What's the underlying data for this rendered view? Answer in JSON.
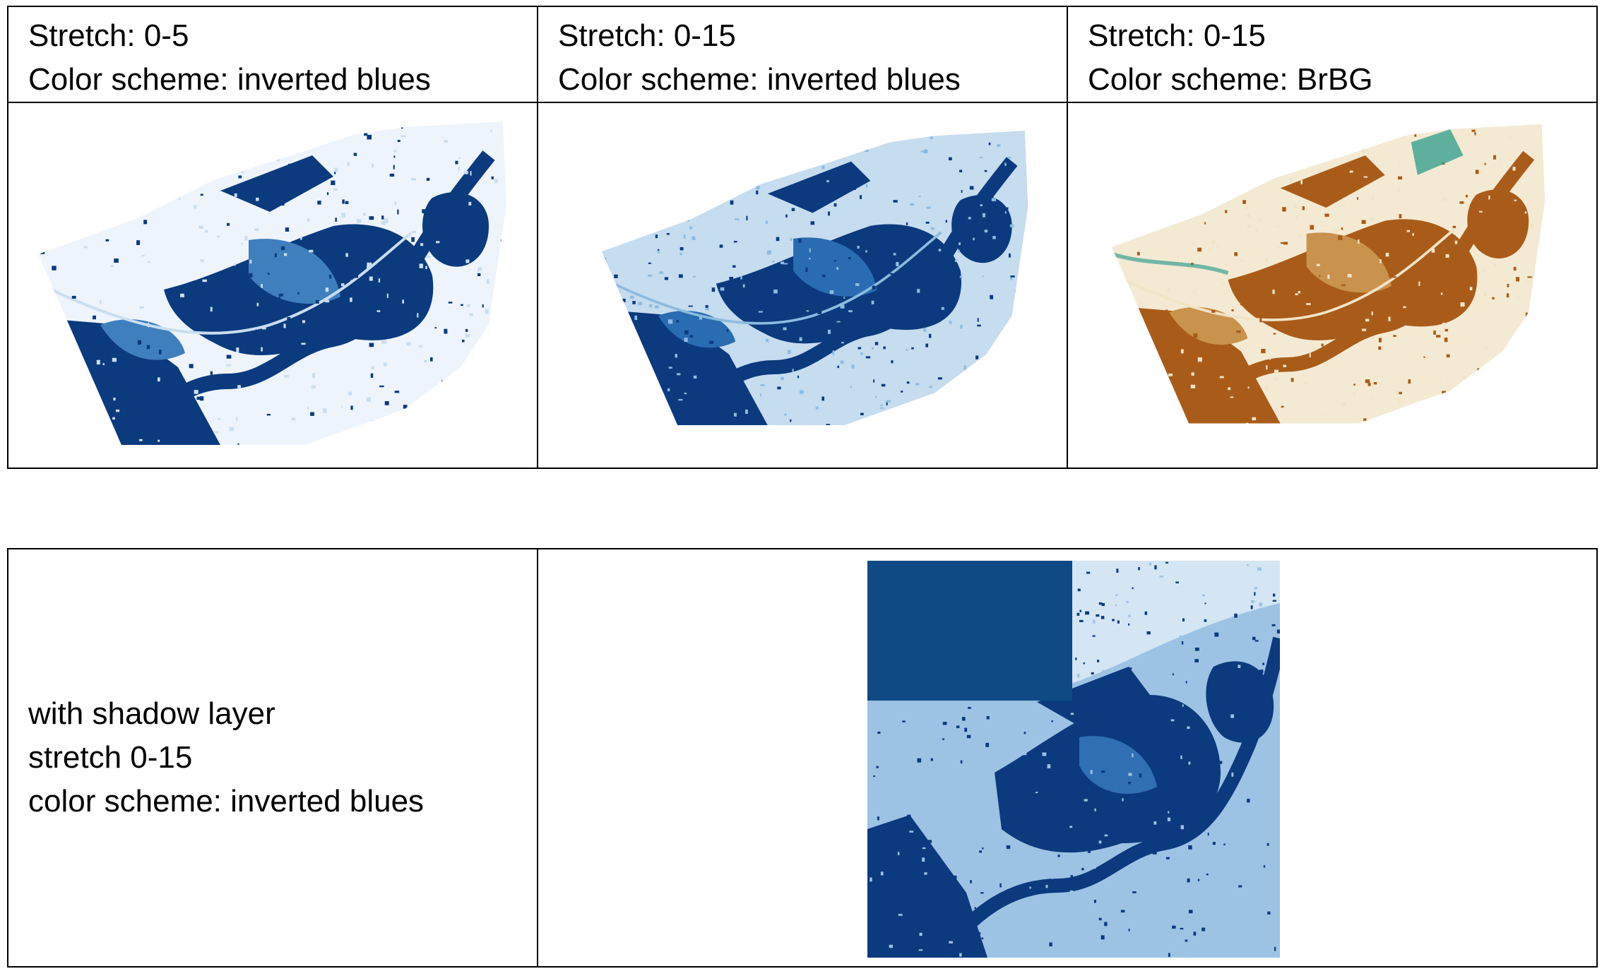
{
  "panels": [
    {
      "stretch": "Stretch: 0-5",
      "scheme": "Color scheme: inverted blues",
      "palette": {
        "dark": "#0b3a7e",
        "mid": "#3f7fbd",
        "light": "#c9def0",
        "bg": "#eef4fb"
      }
    },
    {
      "stretch": "Stretch: 0-15",
      "scheme": "Color scheme: inverted blues",
      "palette": {
        "dark": "#0b3a7e",
        "mid": "#2a6cb1",
        "light": "#8cbbe0",
        "bg": "#c6dcef"
      }
    },
    {
      "stretch": "Stretch: 0-15",
      "scheme": "Color scheme: BrBG",
      "palette": {
        "dark": "#a95c19",
        "mid": "#c9924d",
        "light": "#f1e4c7",
        "bg": "#f4ead3",
        "accent": "#3aa090"
      }
    }
  ],
  "shadow": {
    "lines": [
      "with shadow layer",
      "stretch 0-15",
      "color scheme: inverted blues"
    ],
    "palette": {
      "dark": "#0b3a7e",
      "mid": "#2f6fb2",
      "light": "#9cc3e4",
      "bg": "#d4e5f3",
      "block": "#0f4a85"
    }
  }
}
